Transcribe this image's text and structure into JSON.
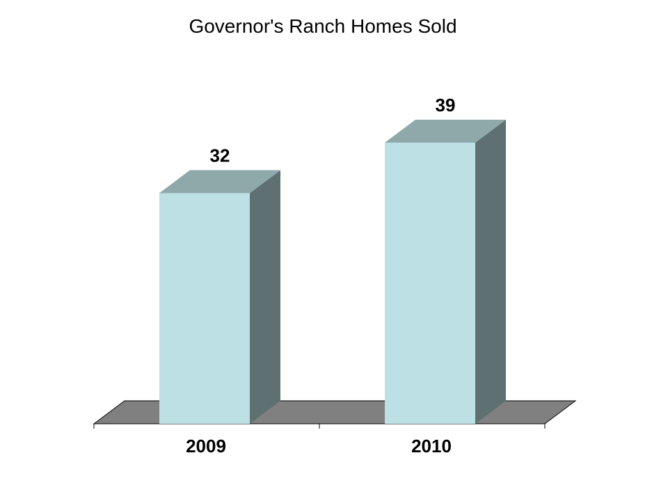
{
  "chart_data": {
    "type": "bar",
    "title": "Governor's Ranch Homes Sold",
    "categories": [
      "2009",
      "2010"
    ],
    "values": [
      32,
      39
    ],
    "xlabel": "",
    "ylabel": "",
    "ylim": [
      0,
      40
    ],
    "grid": false,
    "legend": "none",
    "three_d": true,
    "data_labels": true
  },
  "colors": {
    "bar_front": "#bce0e4",
    "bar_top": "#8fa9ab",
    "bar_side": "#5e7071",
    "floor": "#808080",
    "axis": "#000000"
  }
}
